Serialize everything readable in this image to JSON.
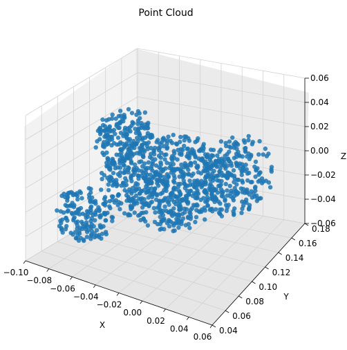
{
  "chart_data": {
    "type": "scatter",
    "projection": "3d",
    "title": "Point Cloud",
    "xlabel": "X",
    "ylabel": "Y",
    "zlabel": "Z",
    "xlim": [
      -0.1,
      0.06
    ],
    "ylim": [
      0.04,
      0.18
    ],
    "zlim": [
      -0.06,
      0.06
    ],
    "x_ticks": [
      "−0.10",
      "−0.08",
      "−0.06",
      "−0.04",
      "−0.02",
      "0.00",
      "0.02",
      "0.04",
      "0.06"
    ],
    "y_ticks": [
      "0.04",
      "0.06",
      "0.08",
      "0.10",
      "0.12",
      "0.14",
      "0.16",
      "0.18"
    ],
    "z_ticks": [
      "−0.06",
      "−0.04",
      "−0.02",
      "0.00",
      "0.02",
      "0.04",
      "0.06"
    ],
    "grid": true,
    "marker_color": "#1f77b4",
    "pane_color": "#f2f2f2",
    "series": [
      {
        "values": "dense point cloud of a scanned object (bunny-like shape), approx. x from -0.09 to 0.06, y from 0.04 to 0.18, z from -0.06 to 0.05"
      }
    ]
  }
}
